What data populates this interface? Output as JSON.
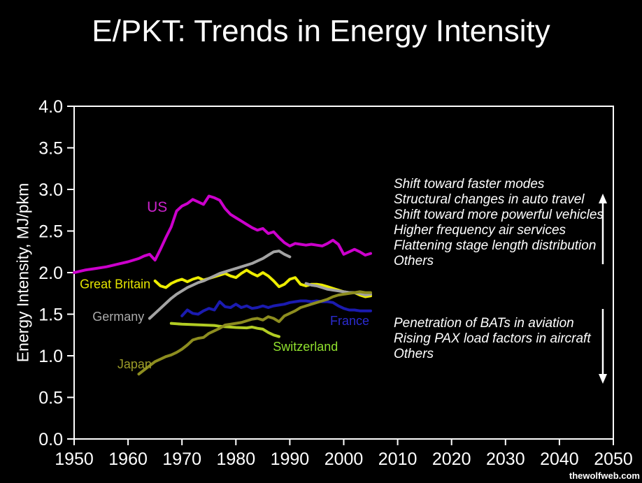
{
  "title": "E/PKT: Trends in Energy Intensity",
  "watermark": "thewolfweb.com",
  "annotations": {
    "increase": {
      "arrow_direction": "up",
      "lines": [
        "Shift toward faster modes",
        "Structural changes in auto travel",
        "Shift toward more powerful vehicles",
        "Higher frequency air services",
        "Flattening stage length distribution",
        "Others"
      ]
    },
    "decrease": {
      "arrow_direction": "down",
      "lines": [
        "Penetration of BATs in aviation",
        "Rising PAX load factors in aircraft",
        "Others"
      ]
    }
  },
  "chart_data": {
    "type": "line",
    "title": "E/PKT: Trends in Energy Intensity",
    "xlabel": "",
    "ylabel": "Energy Intensity, MJ/pkm",
    "xlim": [
      1950,
      2050
    ],
    "ylim": [
      0.0,
      4.0
    ],
    "grid": false,
    "legend_position": "inline-labels",
    "x_ticks": [
      1950,
      1960,
      1970,
      1980,
      1990,
      2000,
      2010,
      2020,
      2030,
      2040,
      2050
    ],
    "y_ticks": [
      0.0,
      0.5,
      1.0,
      1.5,
      2.0,
      2.5,
      3.0,
      3.5,
      4.0
    ],
    "frame_color": "#ffffff",
    "series": [
      {
        "name": "France",
        "color": "#1b1bb0",
        "label_color": "#2b2bd0",
        "label_at": {
          "year": 2001.1,
          "value": 1.42
        },
        "points": [
          [
            1970,
            1.48
          ],
          [
            1971,
            1.55
          ],
          [
            1972,
            1.51
          ],
          [
            1973,
            1.5
          ],
          [
            1974,
            1.54
          ],
          [
            1975,
            1.57
          ],
          [
            1976,
            1.55
          ],
          [
            1977,
            1.65
          ],
          [
            1978,
            1.59
          ],
          [
            1979,
            1.58
          ],
          [
            1980,
            1.62
          ],
          [
            1981,
            1.58
          ],
          [
            1982,
            1.6
          ],
          [
            1983,
            1.57
          ],
          [
            1984,
            1.58
          ],
          [
            1985,
            1.6
          ],
          [
            1986,
            1.58
          ],
          [
            1987,
            1.6
          ],
          [
            1988,
            1.61
          ],
          [
            1989,
            1.62
          ],
          [
            1990,
            1.64
          ],
          [
            1991,
            1.65
          ],
          [
            1992,
            1.66
          ],
          [
            1993,
            1.66
          ],
          [
            1994,
            1.65
          ],
          [
            1995,
            1.66
          ],
          [
            1996,
            1.65
          ],
          [
            1997,
            1.65
          ],
          [
            1998,
            1.64
          ],
          [
            1999,
            1.6
          ],
          [
            2000,
            1.57
          ],
          [
            2001,
            1.55
          ],
          [
            2002,
            1.55
          ],
          [
            2003,
            1.54
          ],
          [
            2004,
            1.54
          ],
          [
            2005,
            1.54
          ]
        ]
      },
      {
        "name": "Great Britain",
        "color": "#eded00",
        "label_color": "#e6e600",
        "label_at": {
          "year": 1957.6,
          "value": 1.86
        },
        "points": [
          [
            1965,
            1.9
          ],
          [
            1966,
            1.84
          ],
          [
            1967,
            1.82
          ],
          [
            1968,
            1.87
          ],
          [
            1969,
            1.9
          ],
          [
            1970,
            1.92
          ],
          [
            1971,
            1.89
          ],
          [
            1972,
            1.92
          ],
          [
            1973,
            1.94
          ],
          [
            1974,
            1.91
          ],
          [
            1975,
            1.93
          ],
          [
            1976,
            1.95
          ],
          [
            1977,
            1.97
          ],
          [
            1978,
            1.99
          ],
          [
            1979,
            1.96
          ],
          [
            1980,
            1.94
          ],
          [
            1981,
            1.99
          ],
          [
            1982,
            2.03
          ],
          [
            1983,
            1.99
          ],
          [
            1984,
            1.96
          ],
          [
            1985,
            2.0
          ],
          [
            1986,
            1.96
          ],
          [
            1987,
            1.9
          ],
          [
            1988,
            1.83
          ],
          [
            1989,
            1.86
          ],
          [
            1990,
            1.92
          ],
          [
            1991,
            1.94
          ],
          [
            1992,
            1.86
          ],
          [
            1993,
            1.84
          ],
          [
            1994,
            1.86
          ],
          [
            1995,
            1.86
          ],
          [
            1996,
            1.85
          ],
          [
            1997,
            1.83
          ],
          [
            1998,
            1.81
          ],
          [
            1999,
            1.79
          ],
          [
            2000,
            1.77
          ],
          [
            2001,
            1.76
          ],
          [
            2002,
            1.76
          ],
          [
            2003,
            1.73
          ],
          [
            2004,
            1.71
          ],
          [
            2005,
            1.72
          ]
        ]
      },
      {
        "name": "Germany",
        "color": "#a3a3a3",
        "label_color": "#ababab",
        "label_at": {
          "year": 1958.2,
          "value": 1.47
        },
        "points": [
          [
            1964,
            1.45
          ],
          [
            1965,
            1.51
          ],
          [
            1966,
            1.57
          ],
          [
            1967,
            1.63
          ],
          [
            1968,
            1.69
          ],
          [
            1969,
            1.74
          ],
          [
            1970,
            1.78
          ],
          [
            1971,
            1.82
          ],
          [
            1972,
            1.85
          ],
          [
            1973,
            1.88
          ],
          [
            1974,
            1.9
          ],
          [
            1975,
            1.93
          ],
          [
            1976,
            1.96
          ],
          [
            1977,
            1.99
          ],
          [
            1978,
            2.01
          ],
          [
            1979,
            2.03
          ],
          [
            1980,
            2.05
          ],
          [
            1981,
            2.07
          ],
          [
            1982,
            2.09
          ],
          [
            1983,
            2.11
          ],
          [
            1984,
            2.14
          ],
          [
            1985,
            2.17
          ],
          [
            1986,
            2.21
          ],
          [
            1987,
            2.25
          ],
          [
            1988,
            2.26
          ],
          [
            1989,
            2.22
          ],
          [
            1990,
            2.19
          ],
          null,
          [
            1993,
            1.87
          ],
          [
            1994,
            1.85
          ],
          [
            1995,
            1.84
          ],
          [
            1996,
            1.82
          ],
          [
            1997,
            1.8
          ],
          [
            1998,
            1.79
          ],
          [
            1999,
            1.78
          ],
          [
            2000,
            1.77
          ],
          [
            2001,
            1.76
          ],
          [
            2002,
            1.76
          ],
          [
            2003,
            1.75
          ],
          [
            2004,
            1.73
          ],
          [
            2005,
            1.74
          ]
        ]
      },
      {
        "name": "Switzerland",
        "color": "#b2cc23",
        "label_color": "#90e02e",
        "label_at": {
          "year": 1992.9,
          "value": 1.11
        },
        "points": [
          [
            1968,
            1.39
          ],
          [
            1970,
            1.38
          ],
          [
            1972,
            1.375
          ],
          [
            1974,
            1.37
          ],
          [
            1976,
            1.365
          ],
          [
            1977,
            1.355
          ],
          [
            1978,
            1.35
          ],
          [
            1980,
            1.34
          ],
          [
            1982,
            1.335
          ],
          [
            1983,
            1.345
          ],
          [
            1984,
            1.33
          ],
          [
            1985,
            1.32
          ],
          [
            1986,
            1.28
          ],
          [
            1987,
            1.25
          ],
          [
            1988,
            1.23
          ]
        ]
      },
      {
        "name": "Japan",
        "color": "#8d8d1f",
        "label_color": "#9c9c28",
        "label_at": {
          "year": 1961.2,
          "value": 0.9
        },
        "points": [
          [
            1962,
            0.78
          ],
          [
            1963,
            0.83
          ],
          [
            1964,
            0.88
          ],
          [
            1965,
            0.93
          ],
          [
            1966,
            0.96
          ],
          [
            1967,
            0.99
          ],
          [
            1968,
            1.01
          ],
          [
            1969,
            1.04
          ],
          [
            1970,
            1.08
          ],
          [
            1971,
            1.13
          ],
          [
            1972,
            1.19
          ],
          [
            1973,
            1.21
          ],
          [
            1974,
            1.22
          ],
          [
            1975,
            1.27
          ],
          [
            1976,
            1.3
          ],
          [
            1977,
            1.33
          ],
          [
            1978,
            1.37
          ],
          [
            1979,
            1.38
          ],
          [
            1980,
            1.39
          ],
          [
            1981,
            1.4
          ],
          [
            1982,
            1.42
          ],
          [
            1983,
            1.44
          ],
          [
            1984,
            1.45
          ],
          [
            1985,
            1.43
          ],
          [
            1986,
            1.47
          ],
          [
            1987,
            1.45
          ],
          [
            1988,
            1.41
          ],
          [
            1989,
            1.48
          ],
          [
            1990,
            1.51
          ],
          [
            1991,
            1.54
          ],
          [
            1992,
            1.58
          ],
          [
            1993,
            1.6
          ],
          [
            1994,
            1.62
          ],
          [
            1995,
            1.64
          ],
          [
            1996,
            1.66
          ],
          [
            1997,
            1.68
          ],
          [
            1998,
            1.71
          ],
          [
            1999,
            1.73
          ],
          [
            2000,
            1.74
          ],
          [
            2001,
            1.75
          ],
          [
            2002,
            1.76
          ],
          [
            2003,
            1.77
          ],
          [
            2004,
            1.76
          ],
          [
            2005,
            1.76
          ]
        ]
      },
      {
        "name": "US",
        "color": "#cc00cc",
        "label_color": "#cc22cc",
        "label_at": {
          "year": 1965.4,
          "value": 2.78
        },
        "points": [
          [
            1950,
            2.0
          ],
          [
            1952,
            2.03
          ],
          [
            1954,
            2.05
          ],
          [
            1956,
            2.07
          ],
          [
            1958,
            2.1
          ],
          [
            1960,
            2.13
          ],
          [
            1962,
            2.17
          ],
          [
            1963,
            2.2
          ],
          [
            1964,
            2.22
          ],
          [
            1965,
            2.15
          ],
          [
            1966,
            2.28
          ],
          [
            1967,
            2.42
          ],
          [
            1968,
            2.55
          ],
          [
            1969,
            2.74
          ],
          [
            1970,
            2.8
          ],
          [
            1971,
            2.83
          ],
          [
            1972,
            2.88
          ],
          [
            1973,
            2.85
          ],
          [
            1974,
            2.82
          ],
          [
            1975,
            2.92
          ],
          [
            1976,
            2.9
          ],
          [
            1977,
            2.87
          ],
          [
            1978,
            2.77
          ],
          [
            1979,
            2.7
          ],
          [
            1980,
            2.66
          ],
          [
            1981,
            2.62
          ],
          [
            1982,
            2.58
          ],
          [
            1983,
            2.54
          ],
          [
            1984,
            2.51
          ],
          [
            1985,
            2.53
          ],
          [
            1986,
            2.47
          ],
          [
            1987,
            2.49
          ],
          [
            1988,
            2.42
          ],
          [
            1989,
            2.36
          ],
          [
            1990,
            2.32
          ],
          [
            1991,
            2.35
          ],
          [
            1992,
            2.34
          ],
          [
            1993,
            2.33
          ],
          [
            1994,
            2.34
          ],
          [
            1995,
            2.33
          ],
          [
            1996,
            2.32
          ],
          [
            1997,
            2.35
          ],
          [
            1998,
            2.39
          ],
          [
            1999,
            2.34
          ],
          [
            2000,
            2.22
          ],
          [
            2001,
            2.25
          ],
          [
            2002,
            2.28
          ],
          [
            2003,
            2.25
          ],
          [
            2004,
            2.21
          ],
          [
            2005,
            2.23
          ]
        ]
      }
    ]
  }
}
